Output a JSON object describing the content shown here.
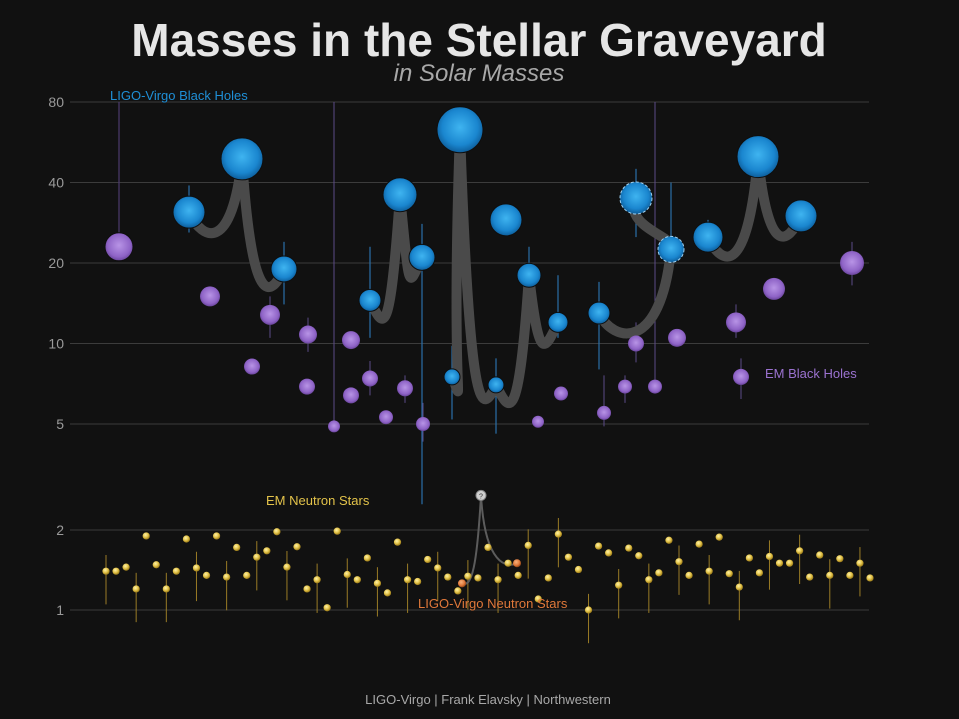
{
  "chart_data": {
    "type": "scatter",
    "title": "Masses in the Stellar Graveyard",
    "subtitle": "in Solar Masses",
    "credit": "LIGO-Virgo | Frank Elavsky | Northwestern",
    "yscale": "log",
    "yticks": [
      1,
      2,
      5,
      10,
      20,
      40,
      80
    ],
    "grid": true,
    "colors": {
      "ligo_bh": "#1f8fd6",
      "em_bh": "#9b72d0",
      "em_ns": "#e3c34a",
      "ligo_ns": "#e0783a",
      "merger": "#4a4a4a",
      "errorbar_bh": "#2a6fa8",
      "errorbar_ns": "#9a7c26"
    },
    "labels": {
      "ligo_bh": "LIGO-Virgo Black Holes",
      "em_bh": "EM Black Holes",
      "em_ns": "EM Neutron Stars",
      "ligo_ns": "LIGO-Virgo Neutron Stars",
      "unknown": "?"
    },
    "series": {
      "ligo_bh": [
        {
          "x": 1,
          "y": 23,
          "lo": 23,
          "hi": 80,
          "color": "em"
        },
        {
          "x": 2,
          "y": 31,
          "lo": 26,
          "hi": 39
        },
        {
          "x": 3,
          "y": 49,
          "lo": 44,
          "hi": 55
        },
        {
          "x": 4,
          "y": 19,
          "lo": 14,
          "hi": 24
        },
        {
          "x": 5,
          "y": 14.5,
          "lo": 10.5,
          "hi": 23
        },
        {
          "x": 6,
          "y": 36,
          "lo": 32,
          "hi": 41
        },
        {
          "x": 7,
          "y": 21,
          "lo": 2.5,
          "hi": 28
        },
        {
          "x": 8,
          "y": 7.5,
          "lo": 5.2,
          "hi": 9.8
        },
        {
          "x": 9,
          "y": 63,
          "lo": 57,
          "hi": 70
        },
        {
          "x": 10,
          "y": 29,
          "lo": 26,
          "hi": 33
        },
        {
          "x": 11,
          "y": 7,
          "lo": 4.6,
          "hi": 8.8
        },
        {
          "x": 12,
          "y": 18,
          "lo": 14,
          "hi": 23
        },
        {
          "x": 13,
          "y": 12,
          "lo": 10.5,
          "hi": 18
        },
        {
          "x": 14,
          "y": 13,
          "lo": 8,
          "hi": 17
        },
        {
          "x": 15,
          "y": 35,
          "lo": 25,
          "hi": 45
        },
        {
          "x": 16,
          "y": 22.5,
          "lo": 18,
          "hi": 40
        },
        {
          "x": 17,
          "y": 25,
          "lo": 22,
          "hi": 29
        },
        {
          "x": 18,
          "y": 50,
          "lo": 45,
          "hi": 56
        },
        {
          "x": 19,
          "y": 30,
          "lo": 27,
          "hi": 34
        }
      ],
      "em_bh": [
        {
          "x": 1,
          "y": 15
        },
        {
          "x": 2,
          "y": 8.2
        },
        {
          "x": 3,
          "y": 12.8,
          "lo": 10.5,
          "hi": 15
        },
        {
          "x": 4,
          "y": 6.9
        },
        {
          "x": 5,
          "y": 10.8,
          "lo": 9.3,
          "hi": 12.5
        },
        {
          "x": 6,
          "y": 4.9,
          "lo": 4.9,
          "hi": 80
        },
        {
          "x": 7,
          "y": 10.3
        },
        {
          "x": 8,
          "y": 6.4
        },
        {
          "x": 9,
          "y": 7.4,
          "lo": 6.4,
          "hi": 8.6
        },
        {
          "x": 10,
          "y": 5.3
        },
        {
          "x": 11,
          "y": 6.8,
          "lo": 6,
          "hi": 7.6
        },
        {
          "x": 12,
          "y": 5,
          "lo": 4.3,
          "hi": 6
        },
        {
          "x": 13,
          "y": 5.1
        },
        {
          "x": 14,
          "y": 6.5
        },
        {
          "x": 15,
          "y": 5.5,
          "lo": 4.9,
          "hi": 7.6
        },
        {
          "x": 16,
          "y": 6.9,
          "lo": 6,
          "hi": 7.6
        },
        {
          "x": 17,
          "y": 10,
          "lo": 8.5,
          "hi": 12
        },
        {
          "x": 18,
          "y": 6.9,
          "lo": 6.9,
          "hi": 80
        },
        {
          "x": 19,
          "y": 10.5
        },
        {
          "x": 20,
          "y": 12,
          "lo": 10.5,
          "hi": 14
        },
        {
          "x": 21,
          "y": 7.5,
          "lo": 6.2,
          "hi": 8.8
        },
        {
          "x": 22,
          "y": 16
        },
        {
          "x": 23,
          "y": 20,
          "lo": 16.5,
          "hi": 24
        }
      ],
      "em_ns": [
        1.4,
        1.4,
        1.45,
        1.2,
        1.9,
        1.48,
        1.2,
        1.4,
        1.85,
        1.44,
        1.35,
        1.9,
        1.33,
        1.72,
        1.35,
        1.58,
        1.67,
        1.97,
        1.45,
        1.73,
        1.2,
        1.3,
        1.02,
        1.98,
        1.36,
        1.3,
        1.57,
        1.26,
        1.16,
        1.8,
        1.3,
        1.28,
        1.55,
        1.44,
        1.33,
        1.18,
        1.34,
        1.32,
        1.72,
        1.3,
        1.5,
        1.35,
        1.75,
        1.1,
        1.32,
        1.93,
        1.58,
        1.42,
        1.0,
        1.74,
        1.64,
        1.24,
        1.71,
        1.6,
        1.3,
        1.38,
        1.83,
        1.52,
        1.35,
        1.77,
        1.4,
        1.88,
        1.37,
        1.22,
        1.57,
        1.38,
        1.59,
        1.5,
        1.5,
        1.67,
        1.33,
        1.61,
        1.35,
        1.56,
        1.35,
        1.5,
        1.32
      ]
    },
    "ligo_ns": [
      {
        "y": 1.26
      },
      {
        "y": 1.5
      }
    ],
    "ligo_ns_remnant": {
      "y": 2.7
    }
  }
}
